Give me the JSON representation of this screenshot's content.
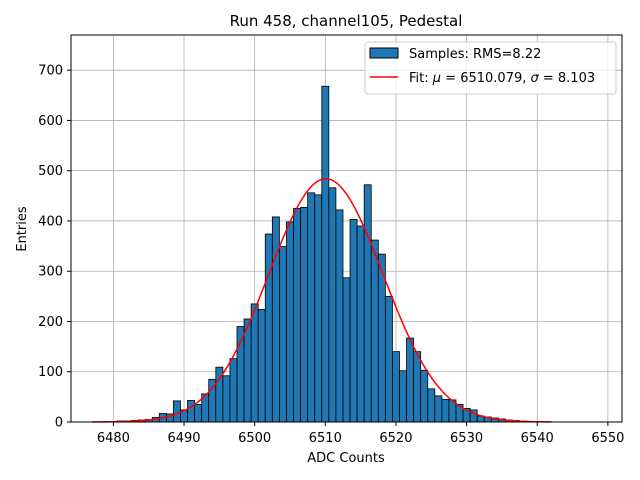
{
  "chart_data": {
    "type": "bar",
    "title": "Run 458, channel105, Pedestal",
    "xlabel": "ADC Counts",
    "ylabel": "Entries",
    "xlim": [
      6474,
      6552
    ],
    "ylim": [
      0,
      770
    ],
    "xticks": [
      6480,
      6490,
      6500,
      6510,
      6520,
      6530,
      6540,
      6550
    ],
    "yticks": [
      0,
      100,
      200,
      300,
      400,
      500,
      600,
      700
    ],
    "grid": true,
    "legend_position": "top-right",
    "bin_width": 1,
    "bins": [
      6477,
      6478,
      6479,
      6480,
      6481,
      6482,
      6483,
      6484,
      6485,
      6486,
      6487,
      6488,
      6489,
      6490,
      6491,
      6492,
      6493,
      6494,
      6495,
      6496,
      6497,
      6498,
      6499,
      6500,
      6501,
      6502,
      6503,
      6504,
      6505,
      6506,
      6507,
      6508,
      6509,
      6510,
      6511,
      6512,
      6513,
      6514,
      6515,
      6516,
      6517,
      6518,
      6519,
      6520,
      6521,
      6522,
      6523,
      6524,
      6525,
      6526,
      6527,
      6528,
      6529,
      6530,
      6531,
      6532,
      6533,
      6534,
      6535,
      6536,
      6537,
      6538,
      6539,
      6540,
      6541
    ],
    "values": [
      0,
      0,
      1,
      1,
      2,
      2,
      3,
      4,
      5,
      9,
      17,
      16,
      42,
      24,
      43,
      35,
      56,
      85,
      109,
      92,
      126,
      190,
      205,
      235,
      224,
      374,
      408,
      349,
      398,
      425,
      427,
      456,
      452,
      668,
      466,
      422,
      287,
      403,
      390,
      472,
      362,
      334,
      250,
      140,
      102,
      167,
      140,
      103,
      66,
      52,
      45,
      44,
      35,
      27,
      24,
      12,
      10,
      8,
      6,
      4,
      3,
      2,
      1,
      1,
      0
    ],
    "series": [
      {
        "name": "Samples: RMS=8.22",
        "kind": "histogram",
        "color": "#1f77b4",
        "edge_color": "#000000"
      },
      {
        "name": "Fit: μ = 6510.079, σ = 8.103",
        "kind": "gaussian",
        "color": "#ff0000",
        "mu": 6510.079,
        "sigma": 8.103,
        "amplitude": 484,
        "x_range": [
          6477,
          6542
        ]
      }
    ],
    "legend": {
      "samples_name": "Samples: RMS=8.22",
      "fit_prefix": "Fit: ",
      "mu_symbol": "μ",
      "mu_equals": " = 6510.079, ",
      "sigma_symbol": "σ",
      "sigma_equals": " = 8.103"
    }
  }
}
